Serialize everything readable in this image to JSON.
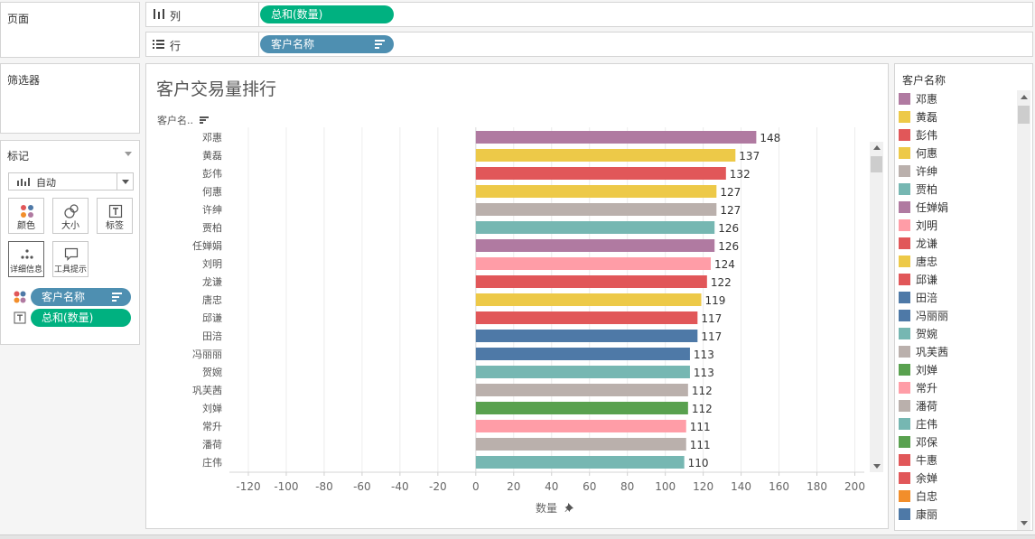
{
  "shelves": {
    "pages_label": "页面",
    "filters_label": "筛选器",
    "columns_label": "列",
    "columns_pill": "总和(数量)",
    "rows_label": "行",
    "rows_pill": "客户名称"
  },
  "marks": {
    "title": "标记",
    "type_label": "自动",
    "buttons": {
      "color": "颜色",
      "size": "大小",
      "label": "标签",
      "detail": "详细信息",
      "tooltip": "工具提示"
    },
    "field_customer": "客户名称",
    "field_quantity": "总和(数量)"
  },
  "sheet": {
    "title": "客户交易量排行",
    "row_header": "客户名..",
    "x_axis_title": "数量"
  },
  "chart_data": {
    "type": "bar",
    "orientation": "horizontal",
    "categories": [
      "邓惠",
      "黄磊",
      "彭伟",
      "何惠",
      "许绅",
      "贾柏",
      "任婵娟",
      "刘明",
      "龙谦",
      "唐忠",
      "邱谦",
      "田涪",
      "冯丽丽",
      "贺婉",
      "巩芙茜",
      "刘婵",
      "常升",
      "潘荷",
      "庄伟"
    ],
    "values": [
      148,
      137,
      132,
      127,
      127,
      126,
      126,
      124,
      122,
      119,
      117,
      117,
      113,
      113,
      112,
      112,
      111,
      111,
      110
    ],
    "colors": [
      "#b07aa1",
      "#edc948",
      "#e15759",
      "#edc948",
      "#bab0ac",
      "#76b7b2",
      "#b07aa1",
      "#ff9da7",
      "#e15759",
      "#edc948",
      "#e15759",
      "#4e79a7",
      "#4e79a7",
      "#76b7b2",
      "#bab0ac",
      "#59a14f",
      "#ff9da7",
      "#bab0ac",
      "#76b7b2"
    ],
    "xlim": [
      -130,
      205
    ],
    "ticks": [
      -120,
      -100,
      -80,
      -60,
      -40,
      -20,
      0,
      20,
      40,
      60,
      80,
      100,
      120,
      140,
      160,
      180,
      200
    ],
    "xlabel": "数量",
    "grid": true
  },
  "legend": {
    "title": "客户名称",
    "items": [
      {
        "name": "邓惠",
        "color": "#b07aa1"
      },
      {
        "name": "黄磊",
        "color": "#edc948"
      },
      {
        "name": "彭伟",
        "color": "#e15759"
      },
      {
        "name": "何惠",
        "color": "#edc948"
      },
      {
        "name": "许绅",
        "color": "#bab0ac"
      },
      {
        "name": "贾柏",
        "color": "#76b7b2"
      },
      {
        "name": "任婵娟",
        "color": "#b07aa1"
      },
      {
        "name": "刘明",
        "color": "#ff9da7"
      },
      {
        "name": "龙谦",
        "color": "#e15759"
      },
      {
        "name": "唐忠",
        "color": "#edc948"
      },
      {
        "name": "邱谦",
        "color": "#e15759"
      },
      {
        "name": "田涪",
        "color": "#4e79a7"
      },
      {
        "name": "冯丽丽",
        "color": "#4e79a7"
      },
      {
        "name": "贺婉",
        "color": "#76b7b2"
      },
      {
        "name": "巩芙茜",
        "color": "#bab0ac"
      },
      {
        "name": "刘婵",
        "color": "#59a14f"
      },
      {
        "name": "常升",
        "color": "#ff9da7"
      },
      {
        "name": "潘荷",
        "color": "#bab0ac"
      },
      {
        "name": "庄伟",
        "color": "#76b7b2"
      },
      {
        "name": "邓保",
        "color": "#59a14f"
      },
      {
        "name": "牛惠",
        "color": "#e15759"
      },
      {
        "name": "余婵",
        "color": "#e15759"
      },
      {
        "name": "白忠",
        "color": "#f28e2b"
      },
      {
        "name": "康丽",
        "color": "#4e79a7"
      }
    ]
  }
}
